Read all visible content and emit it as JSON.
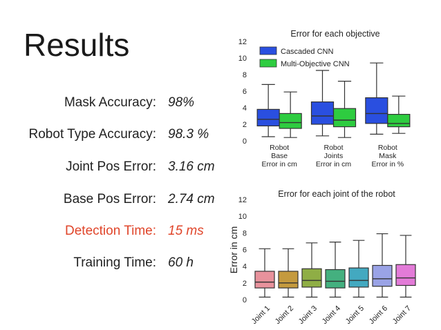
{
  "title": "Results",
  "metrics": [
    {
      "label": "Mask Accuracy:",
      "value": "98%"
    },
    {
      "label": "Robot Type Accuracy:",
      "value": "98.3 %"
    },
    {
      "label": "Joint Pos Error:",
      "value": "3.16 cm"
    },
    {
      "label": "Base Pos Error:",
      "value": "2.74 cm"
    },
    {
      "label": "Detection Time:",
      "value": "15 ms"
    },
    {
      "label": "Training Time:",
      "value": "60 h"
    }
  ],
  "colors": {
    "highlight": "#e0452a",
    "cascaded": "#2a4fe0",
    "multi": "#2ecc40"
  },
  "chart_data": [
    {
      "type": "box",
      "title": "Error for each objective",
      "ylim": [
        0,
        12
      ],
      "yticks": [
        0,
        2,
        4,
        6,
        8,
        10,
        12
      ],
      "categories": [
        [
          "Robot",
          "Base",
          "Error in cm"
        ],
        [
          "Robot",
          "Joints",
          "Error in cm"
        ],
        [
          "Robot",
          "Mask",
          "Error in %"
        ]
      ],
      "legend_position": "top-left",
      "series": [
        {
          "name": "Cascaded CNN",
          "color": "#2a4fe0",
          "boxes": [
            {
              "min": 0.5,
              "q1": 1.8,
              "median": 2.6,
              "q3": 3.8,
              "max": 6.8
            },
            {
              "min": 0.6,
              "q1": 2.0,
              "median": 3.0,
              "q3": 4.7,
              "max": 8.5
            },
            {
              "min": 0.8,
              "q1": 2.1,
              "median": 3.3,
              "q3": 5.2,
              "max": 9.4
            }
          ]
        },
        {
          "name": "Multi-Objective CNN",
          "color": "#2ecc40",
          "boxes": [
            {
              "min": 0.4,
              "q1": 1.5,
              "median": 2.2,
              "q3": 3.3,
              "max": 5.9
            },
            {
              "min": 0.4,
              "q1": 1.7,
              "median": 2.5,
              "q3": 3.9,
              "max": 7.2
            },
            {
              "min": 0.9,
              "q1": 1.7,
              "median": 2.1,
              "q3": 3.2,
              "max": 5.4
            }
          ]
        }
      ]
    },
    {
      "type": "box",
      "title": "Error for each joint of the robot",
      "ylabel": "Error in cm",
      "ylim": [
        0,
        12
      ],
      "yticks": [
        0,
        2,
        4,
        6,
        8,
        10,
        12
      ],
      "categories": [
        "Joint 1",
        "Joint 2",
        "Joint 3",
        "Joint 4",
        "Joint 5",
        "Joint 6",
        "Joint 7"
      ],
      "boxes": [
        {
          "color": "#e8929c",
          "min": 0.3,
          "q1": 1.4,
          "median": 2.1,
          "q3": 3.4,
          "max": 6.1
        },
        {
          "color": "#c49a3e",
          "min": 0.3,
          "q1": 1.4,
          "median": 2.0,
          "q3": 3.4,
          "max": 6.1
        },
        {
          "color": "#8fae45",
          "min": 0.3,
          "q1": 1.5,
          "median": 2.3,
          "q3": 3.7,
          "max": 6.8
        },
        {
          "color": "#44b07f",
          "min": 0.3,
          "q1": 1.4,
          "median": 2.2,
          "q3": 3.6,
          "max": 6.9
        },
        {
          "color": "#43a9c0",
          "min": 0.3,
          "q1": 1.5,
          "median": 2.3,
          "q3": 3.8,
          "max": 7.1
        },
        {
          "color": "#9aa3e6",
          "min": 0.3,
          "q1": 1.6,
          "median": 2.5,
          "q3": 4.1,
          "max": 7.9
        },
        {
          "color": "#e37bd8",
          "min": 0.3,
          "q1": 1.7,
          "median": 2.6,
          "q3": 4.2,
          "max": 7.7
        }
      ]
    }
  ]
}
